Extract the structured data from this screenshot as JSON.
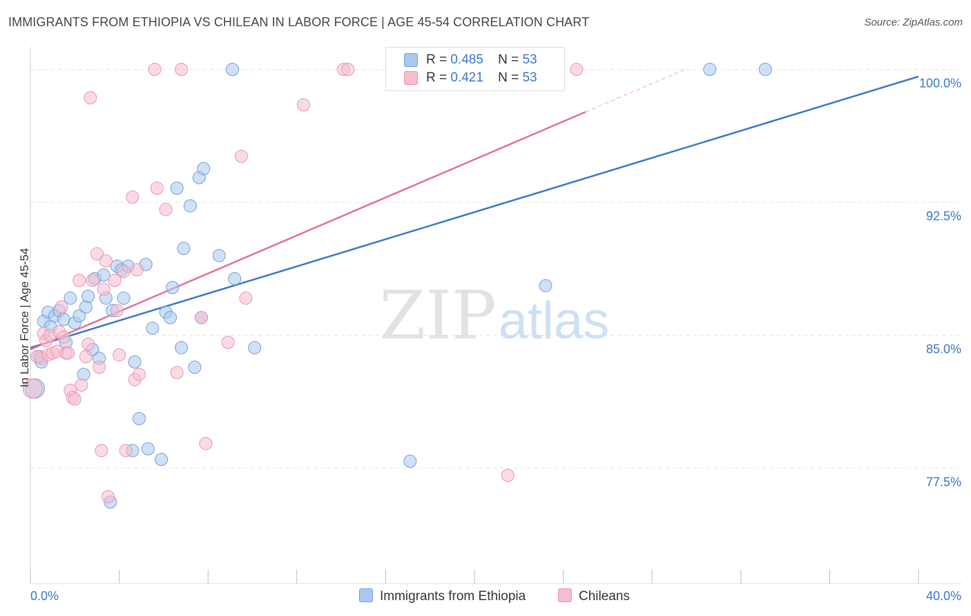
{
  "header": {
    "title": "IMMIGRANTS FROM ETHIOPIA VS CHILEAN IN LABOR FORCE | AGE 45-54 CORRELATION CHART",
    "source": "Source: ZipAtlas.com"
  },
  "watermark": {
    "zip": "ZIP",
    "atlas": "atlas"
  },
  "legend": {
    "rows": [
      {
        "r_label": "R =",
        "r_value": "0.485",
        "n_label": "N =",
        "n_value": "53"
      },
      {
        "r_label": "R =",
        "r_value": "0.421",
        "n_label": "N =",
        "n_value": "53"
      }
    ]
  },
  "bottom_legend": {
    "series1": "Immigrants from Ethiopia",
    "series2": "Chileans"
  },
  "colors": {
    "blue_fill": "#aac8ef",
    "blue_stroke": "#6f9fd9",
    "blue_line": "#3a76c9",
    "pink_fill": "#f6bdd0",
    "pink_stroke": "#e993b1",
    "pink_line": "#e0709a",
    "grid": "#e3e3e3",
    "axis_text": "#3a76c9"
  },
  "chart_data": {
    "type": "scatter",
    "title": "IMMIGRANTS FROM ETHIOPIA VS CHILEAN IN LABOR FORCE | AGE 45-54 CORRELATION CHART",
    "xlabel": "",
    "ylabel": "In Labor Force | Age 45-54",
    "xlim": [
      0,
      40
    ],
    "ylim": [
      71.0,
      101.5
    ],
    "x_tick_labels": [
      "0.0%",
      "40.0%"
    ],
    "y_ticks": [
      77.5,
      85.0,
      92.5,
      100.0
    ],
    "y_tick_labels": [
      "77.5%",
      "85.0%",
      "92.5%",
      "100.0%"
    ],
    "grid": true,
    "legend_position": "top-center",
    "series": [
      {
        "name": "Immigrants from Ethiopia",
        "r": 0.485,
        "n": 53,
        "trend": {
          "x": [
            0,
            40
          ],
          "y": [
            84.3,
            99.6
          ]
        },
        "points": [
          [
            0.2,
            82.0
          ],
          [
            0.4,
            83.8
          ],
          [
            0.5,
            83.5
          ],
          [
            0.6,
            85.8
          ],
          [
            0.8,
            86.3
          ],
          [
            0.9,
            85.5
          ],
          [
            1.1,
            86.1
          ],
          [
            1.3,
            86.4
          ],
          [
            1.5,
            85.9
          ],
          [
            1.6,
            84.6
          ],
          [
            1.8,
            87.1
          ],
          [
            2.0,
            85.7
          ],
          [
            2.2,
            86.1
          ],
          [
            2.4,
            82.8
          ],
          [
            2.5,
            86.6
          ],
          [
            2.6,
            87.2
          ],
          [
            2.8,
            84.2
          ],
          [
            2.9,
            88.2
          ],
          [
            3.1,
            83.7
          ],
          [
            3.3,
            88.4
          ],
          [
            3.4,
            87.1
          ],
          [
            3.6,
            75.6
          ],
          [
            3.7,
            86.4
          ],
          [
            3.9,
            88.9
          ],
          [
            4.1,
            88.7
          ],
          [
            4.2,
            87.1
          ],
          [
            4.4,
            88.9
          ],
          [
            4.6,
            78.5
          ],
          [
            4.7,
            83.5
          ],
          [
            4.9,
            80.3
          ],
          [
            5.2,
            89.0
          ],
          [
            5.3,
            78.6
          ],
          [
            5.5,
            85.4
          ],
          [
            5.9,
            78.0
          ],
          [
            6.1,
            86.3
          ],
          [
            6.3,
            86.0
          ],
          [
            6.4,
            87.7
          ],
          [
            6.6,
            93.3
          ],
          [
            6.8,
            84.3
          ],
          [
            6.9,
            89.9
          ],
          [
            7.2,
            92.3
          ],
          [
            7.4,
            83.2
          ],
          [
            7.6,
            93.9
          ],
          [
            7.7,
            86.0
          ],
          [
            7.8,
            94.4
          ],
          [
            8.5,
            89.5
          ],
          [
            9.1,
            100.0
          ],
          [
            9.2,
            88.2
          ],
          [
            10.1,
            84.3
          ],
          [
            17.1,
            77.9
          ],
          [
            23.2,
            87.8
          ],
          [
            30.6,
            100.0
          ],
          [
            33.1,
            100.0
          ]
        ]
      },
      {
        "name": "Chileans",
        "r": 0.421,
        "n": 53,
        "trend": {
          "x": [
            0,
            25
          ],
          "y": [
            84.2,
            97.6
          ]
        },
        "trend_dashed": {
          "x": [
            25,
            29.5
          ],
          "y": [
            97.6,
            100.0
          ]
        },
        "points": [
          [
            0.1,
            82.0
          ],
          [
            0.3,
            83.8
          ],
          [
            0.5,
            83.7
          ],
          [
            0.6,
            85.1
          ],
          [
            0.7,
            84.7
          ],
          [
            0.8,
            83.9
          ],
          [
            0.9,
            85.0
          ],
          [
            1.0,
            84.0
          ],
          [
            1.2,
            84.1
          ],
          [
            1.3,
            85.2
          ],
          [
            1.4,
            86.6
          ],
          [
            1.5,
            84.9
          ],
          [
            1.6,
            84.0
          ],
          [
            1.8,
            81.9
          ],
          [
            1.9,
            81.5
          ],
          [
            2.0,
            81.4
          ],
          [
            2.2,
            88.1
          ],
          [
            2.3,
            82.2
          ],
          [
            2.5,
            83.8
          ],
          [
            2.6,
            84.5
          ],
          [
            2.7,
            98.4
          ],
          [
            2.8,
            88.1
          ],
          [
            3.0,
            89.6
          ],
          [
            3.2,
            78.5
          ],
          [
            3.3,
            87.6
          ],
          [
            3.4,
            89.2
          ],
          [
            3.5,
            75.9
          ],
          [
            3.8,
            88.1
          ],
          [
            3.9,
            86.4
          ],
          [
            4.0,
            83.9
          ],
          [
            4.2,
            88.6
          ],
          [
            4.3,
            78.5
          ],
          [
            4.6,
            92.8
          ],
          [
            4.7,
            82.5
          ],
          [
            4.8,
            88.7
          ],
          [
            4.9,
            82.8
          ],
          [
            5.6,
            100.0
          ],
          [
            5.7,
            93.3
          ],
          [
            6.1,
            92.1
          ],
          [
            6.6,
            82.9
          ],
          [
            6.8,
            100.0
          ],
          [
            7.7,
            86.0
          ],
          [
            7.9,
            78.9
          ],
          [
            8.9,
            84.6
          ],
          [
            9.5,
            95.1
          ],
          [
            9.7,
            87.1
          ],
          [
            12.3,
            98.0
          ],
          [
            14.1,
            100.0
          ],
          [
            14.3,
            100.0
          ],
          [
            21.5,
            77.1
          ],
          [
            24.6,
            100.0
          ],
          [
            3.1,
            83.2
          ],
          [
            1.7,
            84.0
          ]
        ]
      }
    ]
  }
}
